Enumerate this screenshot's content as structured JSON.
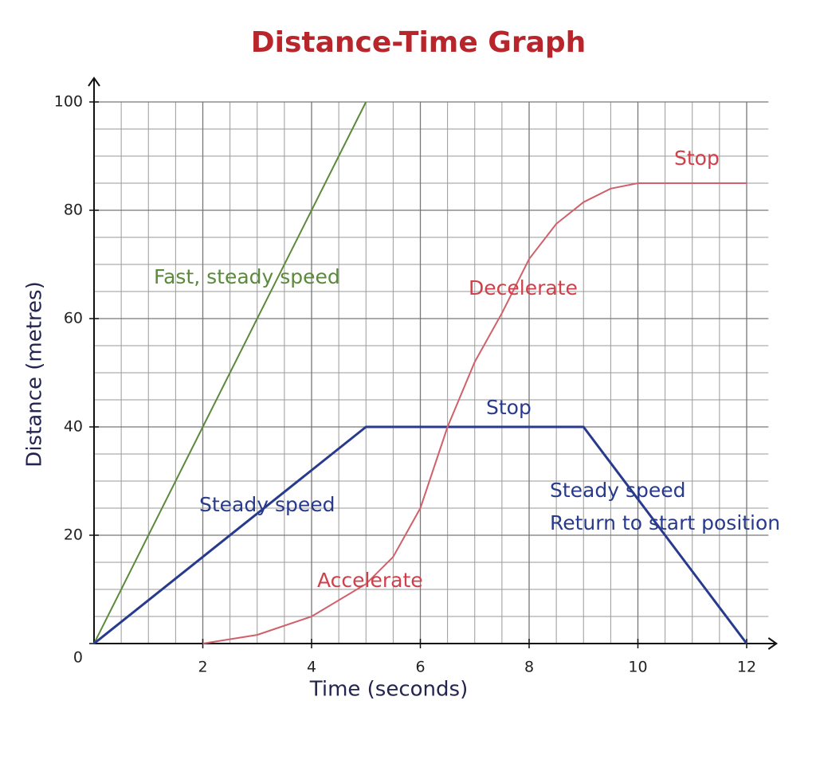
{
  "chart_data": {
    "type": "line",
    "title": "Distance-Time Graph",
    "x_label": "Time (seconds)",
    "y_label": "Distance (metres)",
    "xlim": [
      0,
      12.4
    ],
    "ylim": [
      0,
      100
    ],
    "xticks": [
      2,
      4,
      6,
      8,
      10,
      12
    ],
    "yticks": [
      0,
      20,
      40,
      60,
      80,
      100
    ],
    "grid": true,
    "series": [
      {
        "name": "Fast, steady speed",
        "color": "#5b8a3c",
        "x": [
          0,
          5
        ],
        "values": [
          0,
          100
        ]
      },
      {
        "name": "Steady speed",
        "color": "#283a8c",
        "x": [
          0,
          5,
          9,
          12
        ],
        "values": [
          0,
          40,
          40,
          0
        ]
      },
      {
        "name": "Accelerate, decelerate, stop",
        "color": "#d0606a",
        "x": [
          2,
          3,
          4,
          5,
          5.5,
          6,
          6.5,
          7,
          7.5,
          8,
          8.5,
          9,
          9.5,
          10,
          12
        ],
        "values": [
          0,
          1.6,
          5,
          11,
          16,
          25,
          40,
          52,
          61,
          71,
          77.5,
          81.5,
          84,
          85,
          85
        ]
      }
    ],
    "annotations": [
      {
        "text": "Fast, steady speed",
        "color": "#5b8a3c"
      },
      {
        "text": "Steady speed",
        "color": "#283a8c"
      },
      {
        "text": "Stop",
        "color": "#283a8c"
      },
      {
        "text": "Steady speed",
        "color": "#283a8c"
      },
      {
        "text": "Return to start position",
        "color": "#283a8c"
      },
      {
        "text": "Accelerate",
        "color": "#d0404a"
      },
      {
        "text": "Decelerate",
        "color": "#d0404a"
      },
      {
        "text": "Stop",
        "color": "#d0404a"
      }
    ]
  }
}
